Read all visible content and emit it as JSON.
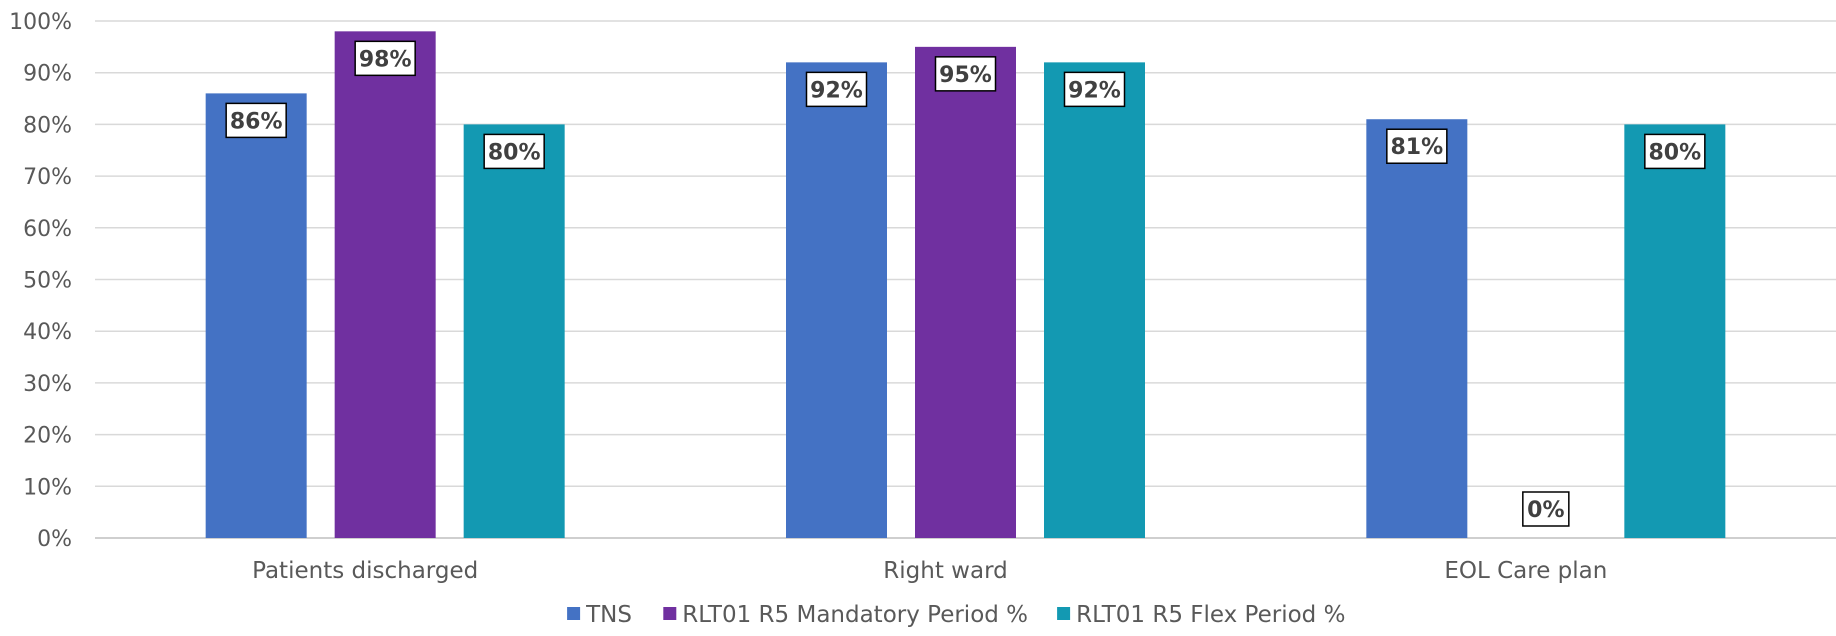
{
  "chart_data": {
    "type": "bar",
    "categories": [
      "Patients discharged",
      "Right ward",
      "EOL Care plan"
    ],
    "series": [
      {
        "name": "TNS",
        "values": [
          86,
          92,
          81
        ],
        "color": "#4472C4"
      },
      {
        "name": "RLT01 R5 Mandatory Period %",
        "values": [
          98,
          95,
          0
        ],
        "color": "#7030A0"
      },
      {
        "name": "RLT01 R5 Flex Period %",
        "values": [
          80,
          92,
          80
        ],
        "color": "#1399B2"
      }
    ],
    "value_format": "percent",
    "ylim": [
      0,
      100
    ],
    "yticks": [
      0,
      10,
      20,
      30,
      40,
      50,
      60,
      70,
      80,
      90,
      100
    ],
    "grid": true,
    "legend_position": "bottom",
    "title": "",
    "xlabel": "",
    "ylabel": ""
  }
}
